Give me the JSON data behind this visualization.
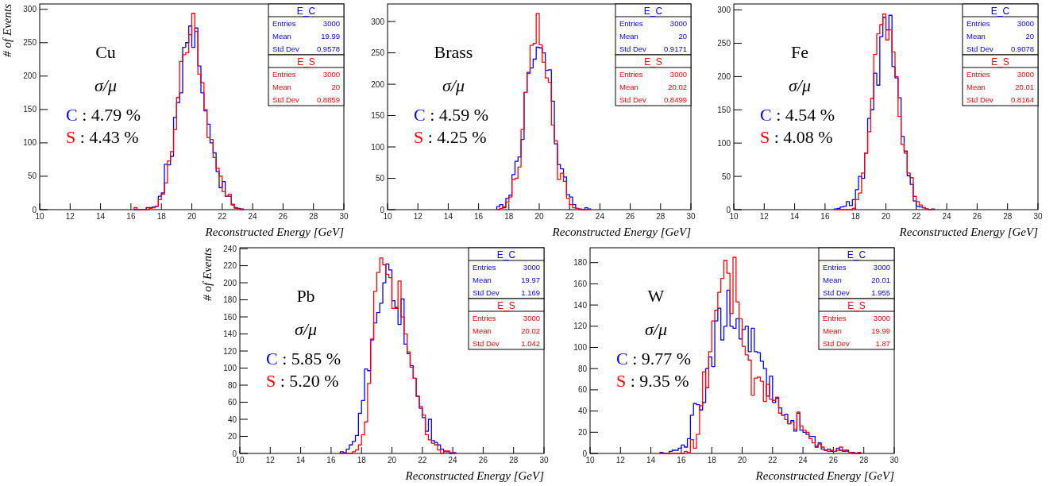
{
  "chart_data": [
    {
      "type": "histogram",
      "xlabel": "Reconstructed Energy [GeV]",
      "ylabel": "# of Events",
      "xlim": [
        10,
        30
      ],
      "ylim": [
        0,
        308
      ],
      "xticks": [
        10,
        12,
        14,
        16,
        18,
        20,
        22,
        24,
        26,
        28,
        30
      ],
      "yticks": [
        0,
        50,
        100,
        150,
        200,
        250,
        300
      ],
      "bins": [
        16.2,
        16.4,
        16.6,
        16.8,
        17,
        17.2,
        17.4,
        17.6,
        17.8,
        18,
        18.2,
        18.4,
        18.6,
        18.8,
        19,
        19.2,
        19.4,
        19.6,
        19.8,
        20,
        20.2,
        20.4,
        20.6,
        20.8,
        21,
        21.2,
        21.4,
        21.6,
        21.8,
        22,
        22.2,
        22.4,
        22.6,
        22.8,
        23,
        23.2,
        23.4
      ],
      "series": [
        {
          "name": "E_C",
          "color": "#0000ff",
          "values": [
            0,
            0,
            0,
            0,
            3,
            3,
            4,
            5,
            20,
            25,
            68,
            67,
            80,
            138,
            160,
            175,
            243,
            250,
            275,
            243,
            272,
            215,
            175,
            148,
            128,
            100,
            85,
            57,
            33,
            42,
            20,
            20,
            7,
            3,
            2,
            1
          ]
        },
        {
          "name": "E_S",
          "color": "#ff0000",
          "values": [
            3,
            0,
            0,
            0,
            0,
            2,
            3,
            5,
            15,
            23,
            40,
            73,
            87,
            120,
            168,
            222,
            232,
            235,
            262,
            294,
            267,
            203,
            190,
            150,
            108,
            105,
            78,
            62,
            50,
            27,
            20,
            23,
            8,
            2,
            1,
            0
          ]
        }
      ],
      "annotations": [
        "Cu",
        "σ/μ",
        "C : 4.79 %",
        "S : 4.43 %",
        "Entries 3000",
        "Mean 19.99",
        "Std Dev 0.9578",
        "Entries 3000",
        "Mean 20",
        "Std Dev 0.8859"
      ]
    },
    {
      "type": "histogram",
      "xlabel": "Reconstructed Energy [GeV]",
      "xlim": [
        10,
        30
      ],
      "ylim": [
        0,
        328
      ],
      "xticks": [
        10,
        12,
        14,
        16,
        18,
        20,
        22,
        24,
        26,
        28,
        30
      ],
      "yticks": [
        0,
        50,
        100,
        150,
        200,
        250,
        300
      ],
      "bins": [
        17.2,
        17.4,
        17.6,
        17.8,
        18,
        18.2,
        18.4,
        18.6,
        18.8,
        19,
        19.2,
        19.4,
        19.6,
        19.8,
        20,
        20.2,
        20.4,
        20.6,
        20.8,
        21,
        21.2,
        21.4,
        21.6,
        21.8,
        22,
        22.2,
        22.4,
        22.6,
        22.8,
        23,
        23.2,
        23.4
      ],
      "series": [
        {
          "name": "E_C",
          "color": "#0000ff",
          "values": [
            5,
            8,
            3,
            18,
            23,
            56,
            77,
            84,
            112,
            187,
            219,
            226,
            240,
            259,
            258,
            250,
            222,
            223,
            173,
            105,
            72,
            65,
            52,
            24,
            20,
            8,
            2,
            1,
            0,
            3,
            1
          ]
        },
        {
          "name": "E_S",
          "color": "#ff0000",
          "values": [
            0,
            2,
            5,
            12,
            20,
            48,
            50,
            68,
            128,
            187,
            217,
            262,
            265,
            313,
            263,
            235,
            210,
            203,
            135,
            110,
            48,
            58,
            45,
            18,
            8,
            3,
            2,
            0,
            0,
            0,
            0
          ]
        }
      ],
      "annotations": [
        "Brass",
        "σ/μ",
        "C : 4.59 %",
        "S : 4.25 %",
        "Entries 3000",
        "Mean 20",
        "Std Dev 0.9171",
        "Entries 3000",
        "Mean 20.02",
        "Std Dev 0.8499"
      ]
    },
    {
      "type": "histogram",
      "xlabel": "Reconstructed Energy [GeV]",
      "xlim": [
        10,
        30
      ],
      "ylim": [
        0,
        309
      ],
      "xticks": [
        10,
        12,
        14,
        16,
        18,
        20,
        22,
        24,
        26,
        28,
        30
      ],
      "yticks": [
        0,
        50,
        100,
        150,
        200,
        250,
        300
      ],
      "bins": [
        16.6,
        16.8,
        17,
        17.2,
        17.4,
        17.6,
        17.8,
        18,
        18.2,
        18.4,
        18.6,
        18.8,
        19,
        19.2,
        19.4,
        19.6,
        19.8,
        20,
        20.2,
        20.4,
        20.6,
        20.8,
        21,
        21.2,
        21.4,
        21.6,
        21.8,
        22,
        22.2,
        22.4,
        22.6,
        22.8,
        23,
        23.2
      ],
      "series": [
        {
          "name": "E_C",
          "color": "#0000ff",
          "values": [
            1,
            2,
            4,
            5,
            12,
            6,
            15,
            30,
            50,
            47,
            85,
            137,
            150,
            205,
            187,
            260,
            289,
            270,
            292,
            215,
            198,
            168,
            110,
            88,
            51,
            38,
            13,
            5,
            4,
            3,
            1,
            0,
            1
          ]
        },
        {
          "name": "E_S",
          "color": "#ff0000",
          "values": [
            0,
            0,
            0,
            0,
            0,
            0,
            2,
            15,
            25,
            55,
            85,
            117,
            167,
            233,
            264,
            278,
            294,
            255,
            270,
            237,
            200,
            140,
            98,
            85,
            55,
            48,
            20,
            12,
            7,
            3,
            1,
            0,
            0
          ]
        }
      ],
      "annotations": [
        "Fe",
        "σ/μ",
        "C : 4.54 %",
        "S : 4.08 %",
        "Entries 3000",
        "Mean 20",
        "Std Dev 0.9078",
        "Entries 3000",
        "Mean 20.01",
        "Std Dev 0.8164"
      ]
    },
    {
      "type": "histogram",
      "xlabel": "Reconstructed Energy [GeV]",
      "ylabel": "# of Events",
      "xlim": [
        10,
        30
      ],
      "ylim": [
        0,
        241
      ],
      "xticks": [
        10,
        12,
        14,
        16,
        18,
        20,
        22,
        24,
        26,
        28,
        30
      ],
      "yticks": [
        0,
        20,
        40,
        60,
        80,
        100,
        120,
        140,
        160,
        180,
        200,
        220,
        240
      ],
      "bins": [
        16.6,
        16.8,
        17,
        17.2,
        17.4,
        17.6,
        17.8,
        18,
        18.2,
        18.4,
        18.6,
        18.8,
        19,
        19.2,
        19.4,
        19.6,
        19.8,
        20,
        20.2,
        20.4,
        20.6,
        20.8,
        21,
        21.2,
        21.4,
        21.6,
        21.8,
        22,
        22.2,
        22.4,
        22.6,
        22.8,
        23,
        23.2,
        23.4,
        23.6,
        23.8,
        24,
        24.2
      ],
      "series": [
        {
          "name": "E_C",
          "color": "#0000ff",
          "values": [
            2,
            1,
            5,
            10,
            14,
            21,
            47,
            62,
            99,
            97,
            133,
            153,
            165,
            176,
            200,
            222,
            215,
            179,
            171,
            151,
            181,
            128,
            117,
            103,
            88,
            67,
            53,
            42,
            26,
            40,
            15,
            13,
            10,
            5,
            2,
            2,
            0,
            1
          ]
        },
        {
          "name": "E_S",
          "color": "#ff0000",
          "values": [
            0,
            0,
            0,
            0,
            2,
            4,
            10,
            22,
            37,
            82,
            134,
            190,
            212,
            229,
            221,
            210,
            206,
            170,
            170,
            202,
            160,
            140,
            119,
            101,
            88,
            67,
            55,
            45,
            22,
            16,
            12,
            10,
            4,
            0,
            3,
            3,
            1,
            0
          ]
        }
      ],
      "annotations": [
        "Pb",
        "σ/μ",
        "C : 5.85 %",
        "S : 5.20 %",
        "Entries 3000",
        "Mean 19.97",
        "Std Dev 1.169",
        "Entries 3000",
        "Mean 20.02",
        "Std Dev 1.042"
      ]
    },
    {
      "type": "histogram",
      "xlabel": "Reconstructed Energy [GeV]",
      "xlim": [
        10,
        30
      ],
      "ylim": [
        0,
        194
      ],
      "xticks": [
        10,
        12,
        14,
        16,
        18,
        20,
        22,
        24,
        26,
        28,
        30
      ],
      "yticks": [
        0,
        20,
        40,
        60,
        80,
        100,
        120,
        140,
        160,
        180
      ],
      "bins": [
        14.6,
        14.8,
        15,
        15.2,
        15.4,
        15.6,
        15.8,
        16,
        16.2,
        16.4,
        16.6,
        16.8,
        17,
        17.2,
        17.4,
        17.6,
        17.8,
        18,
        18.2,
        18.4,
        18.6,
        18.8,
        19,
        19.2,
        19.4,
        19.6,
        19.8,
        20,
        20.2,
        20.4,
        20.6,
        20.8,
        21,
        21.2,
        21.4,
        21.6,
        21.8,
        22,
        22.2,
        22.4,
        22.6,
        22.8,
        23,
        23.2,
        23.4,
        23.6,
        23.8,
        24,
        24.2,
        24.4,
        24.6,
        24.8,
        25,
        25.2,
        25.4,
        25.6,
        25.8,
        26,
        26.2,
        26.4,
        26.6,
        26.8,
        27,
        27.2,
        27.4,
        27.6,
        27.8
      ],
      "series": [
        {
          "name": "E_C",
          "color": "#0000ff",
          "values": [
            1,
            0,
            0,
            2,
            3,
            3,
            5,
            8,
            6,
            14,
            36,
            47,
            46,
            41,
            48,
            80,
            91,
            82,
            125,
            137,
            107,
            120,
            154,
            120,
            118,
            127,
            108,
            117,
            120,
            96,
            118,
            96,
            95,
            87,
            80,
            54,
            73,
            48,
            52,
            43,
            36,
            37,
            28,
            31,
            21,
            38,
            22,
            20,
            18,
            16,
            16,
            6,
            10,
            4,
            3,
            4,
            2,
            2,
            5,
            3,
            2,
            3,
            1,
            1,
            0,
            0
          ]
        },
        {
          "name": "E_S",
          "color": "#ff0000",
          "values": [
            0,
            0,
            0,
            0,
            0,
            0,
            0,
            0,
            2,
            1,
            13,
            5,
            18,
            45,
            77,
            62,
            96,
            125,
            135,
            152,
            165,
            182,
            170,
            132,
            185,
            143,
            127,
            101,
            93,
            88,
            55,
            71,
            72,
            68,
            49,
            65,
            51,
            50,
            53,
            38,
            36,
            32,
            28,
            30,
            23,
            39,
            26,
            22,
            20,
            14,
            10,
            7,
            9,
            6,
            3,
            2,
            3,
            2,
            3,
            6,
            3,
            2,
            1,
            0,
            0,
            1
          ]
        }
      ],
      "annotations": [
        "W",
        "σ/μ",
        "C : 9.77 %",
        "S : 9.35 %",
        "Entries 3000",
        "Mean 20.01",
        "Std Dev 1.955",
        "Entries 3000",
        "Mean 19.99",
        "Std Dev 1.87"
      ]
    }
  ]
}
